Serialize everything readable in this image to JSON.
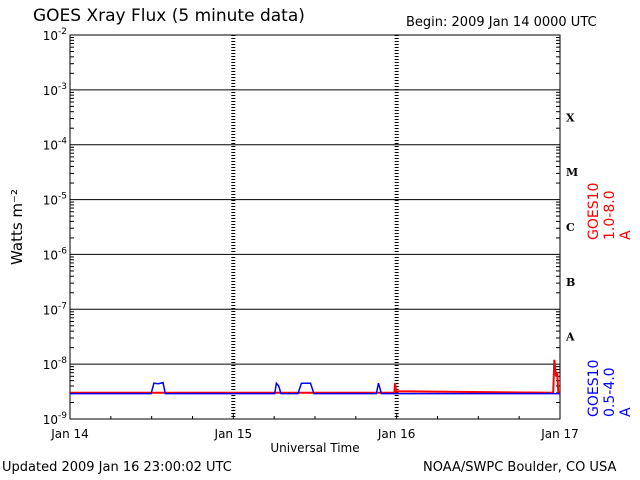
{
  "title": "GOES Xray Flux (5 minute data)",
  "begin": "Begin:  2009 Jan 14 0000 UTC",
  "footer": {
    "updated": "Updated 2009 Jan 16 23:00:02 UTC",
    "credit": "NOAA/SWPC Boulder, CO USA"
  },
  "colors": {
    "long": "#ff0000",
    "short": "#0000ff"
  },
  "chart_data": {
    "type": "line",
    "title": "GOES Xray Flux (5 minute data)",
    "xlabel": "Universal Time",
    "ylabel": "Watts m⁻²",
    "y_scale": "log",
    "ylim": [
      1e-09,
      0.01
    ],
    "xlim": [
      "2009-01-14T00:00",
      "2009-01-17T00:00"
    ],
    "y_ticks": [
      {
        "exp": "-2"
      },
      {
        "exp": "-3"
      },
      {
        "exp": "-4"
      },
      {
        "exp": "-5"
      },
      {
        "exp": "-6"
      },
      {
        "exp": "-7"
      },
      {
        "exp": "-8"
      },
      {
        "exp": "-9"
      }
    ],
    "x_ticks": [
      "Jan 14",
      "Jan 15",
      "Jan 16",
      "Jan 17"
    ],
    "flare_classes": [
      "X",
      "M",
      "C",
      "B",
      "A"
    ],
    "grid": true,
    "series": [
      {
        "name": "GOES10 1.0-8.0 A",
        "color": "#ff0000",
        "points": [
          [
            "2009-01-14T00:00",
            3e-09
          ],
          [
            "2009-01-15T23:40",
            3e-09
          ],
          [
            "2009-01-15T23:45",
            4.5e-09
          ],
          [
            "2009-01-15T23:55",
            3.2e-09
          ],
          [
            "2009-01-16T23:00",
            3e-09
          ],
          [
            "2009-01-16T23:10",
            1.2e-08
          ],
          [
            "2009-01-16T23:25",
            6e-09
          ],
          [
            "2009-01-16T23:35",
            7e-09
          ],
          [
            "2009-01-16T23:45",
            3e-09
          ],
          [
            "2009-01-17T00:00",
            3e-09
          ]
        ]
      },
      {
        "name": "GOES10 0.5-4.0 A",
        "color": "#0000ff",
        "points": [
          [
            "2009-01-14T00:00",
            2.9e-09
          ],
          [
            "2009-01-14T11:55",
            2.9e-09
          ],
          [
            "2009-01-14T12:20",
            4.5e-09
          ],
          [
            "2009-01-14T13:00",
            4.4e-09
          ],
          [
            "2009-01-14T13:40",
            4.6e-09
          ],
          [
            "2009-01-14T14:00",
            2.9e-09
          ],
          [
            "2009-01-15T06:05",
            2.9e-09
          ],
          [
            "2009-01-15T06:20",
            4.5e-09
          ],
          [
            "2009-01-15T06:40",
            4e-09
          ],
          [
            "2009-01-15T07:00",
            2.9e-09
          ],
          [
            "2009-01-15T09:30",
            2.9e-09
          ],
          [
            "2009-01-15T10:00",
            4.5e-09
          ],
          [
            "2009-01-15T11:20",
            4.5e-09
          ],
          [
            "2009-01-15T11:50",
            2.9e-09
          ],
          [
            "2009-01-15T21:00",
            2.9e-09
          ],
          [
            "2009-01-15T21:20",
            4.5e-09
          ],
          [
            "2009-01-15T21:45",
            2.9e-09
          ],
          [
            "2009-01-17T00:00",
            2.9e-09
          ]
        ]
      }
    ]
  }
}
